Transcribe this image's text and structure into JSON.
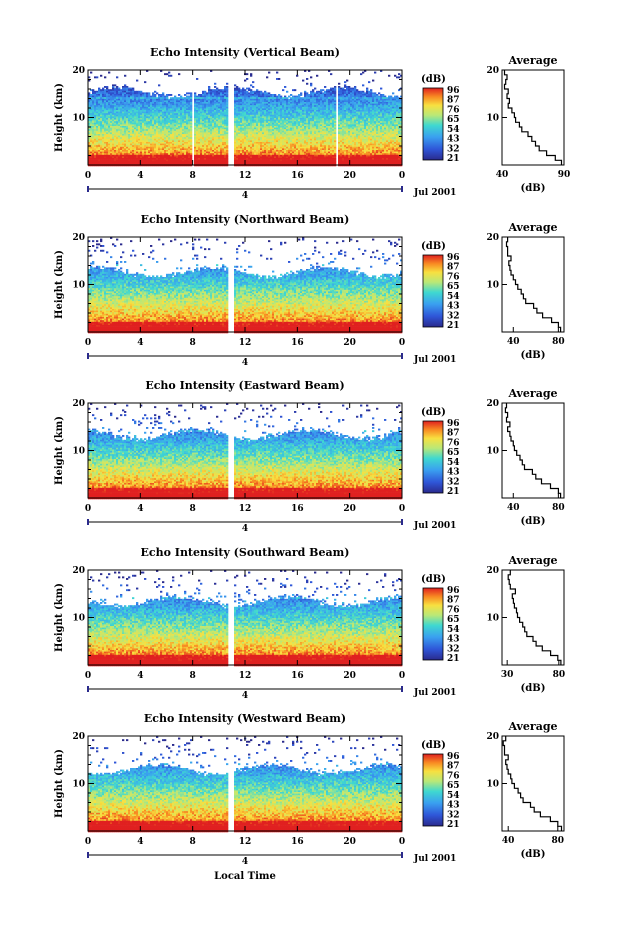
{
  "figure": {
    "xlabel_bottom": "Local Time",
    "date_label": "Jul 2001",
    "day_label": "4"
  },
  "chart_data": [
    {
      "type": "heatmap",
      "title": "Echo Intensity (Vertical Beam)",
      "ylabel": "Height (km)",
      "x_ticks": [
        "0",
        "4",
        "8",
        "12",
        "16",
        "20",
        "0"
      ],
      "y_ticks": [
        "10",
        "20"
      ],
      "ylim": [
        0,
        20
      ],
      "xlim": [
        0,
        24
      ],
      "colorbar": {
        "label": "(dB)",
        "ticks": [
          "96",
          "87",
          "76",
          "65",
          "54",
          "43",
          "32",
          "21"
        ],
        "range": [
          21,
          96
        ]
      },
      "data_gaps_hours": [
        [
          7.9,
          8.1
        ],
        [
          10.6,
          11.1
        ],
        [
          18.9,
          19.1
        ]
      ],
      "profile": {
        "title": "Average",
        "xlabel": "(dB)",
        "x_ticks": [
          "40",
          "90"
        ],
        "xlim": [
          40,
          90
        ],
        "y_ticks": [
          "10",
          "20"
        ],
        "heights": [
          1,
          2,
          3,
          4,
          5,
          6,
          7,
          8,
          9,
          10,
          11,
          12,
          13,
          14,
          15,
          16,
          17,
          18,
          19,
          20
        ],
        "values": [
          88,
          83,
          76,
          70,
          67,
          64,
          61,
          56,
          54,
          51,
          50,
          48,
          45,
          46,
          44,
          45,
          42,
          43,
          44,
          42
        ]
      }
    },
    {
      "type": "heatmap",
      "title": "Echo Intensity (Northward Beam)",
      "ylabel": "Height (km)",
      "x_ticks": [
        "0",
        "4",
        "8",
        "12",
        "16",
        "20",
        "0"
      ],
      "y_ticks": [
        "10",
        "20"
      ],
      "ylim": [
        0,
        20
      ],
      "xlim": [
        0,
        24
      ],
      "colorbar": {
        "label": "(dB)",
        "ticks": [
          "96",
          "87",
          "76",
          "65",
          "54",
          "43",
          "32",
          "21"
        ],
        "range": [
          21,
          96
        ]
      },
      "data_gaps_hours": [
        [
          10.6,
          11.1
        ]
      ],
      "profile": {
        "title": "Average",
        "xlabel": "(dB)",
        "x_ticks": [
          "40",
          "80"
        ],
        "xlim": [
          30,
          85
        ],
        "y_ticks": [
          "10",
          "20"
        ],
        "heights": [
          1,
          2,
          3,
          4,
          5,
          6,
          7,
          8,
          9,
          10,
          11,
          12,
          13,
          14,
          15,
          16,
          17,
          18,
          19,
          20
        ],
        "values": [
          82,
          80,
          74,
          66,
          61,
          58,
          51,
          49,
          47,
          44,
          42,
          40,
          38,
          37,
          36,
          38,
          35,
          35,
          34,
          35
        ]
      }
    },
    {
      "type": "heatmap",
      "title": "Echo Intensity (Eastward Beam)",
      "ylabel": "Height (km)",
      "x_ticks": [
        "0",
        "4",
        "8",
        "12",
        "16",
        "20",
        "0"
      ],
      "y_ticks": [
        "10",
        "20"
      ],
      "ylim": [
        0,
        20
      ],
      "xlim": [
        0,
        24
      ],
      "colorbar": {
        "label": "(dB)",
        "ticks": [
          "96",
          "87",
          "76",
          "65",
          "54",
          "43",
          "32",
          "21"
        ],
        "range": [
          21,
          96
        ]
      },
      "data_gaps_hours": [
        [
          10.6,
          11.1
        ]
      ],
      "profile": {
        "title": "Average",
        "xlabel": "(dB)",
        "x_ticks": [
          "40",
          "80"
        ],
        "xlim": [
          30,
          85
        ],
        "y_ticks": [
          "10",
          "20"
        ],
        "heights": [
          1,
          2,
          3,
          4,
          5,
          6,
          7,
          8,
          9,
          10,
          11,
          12,
          13,
          14,
          15,
          16,
          17,
          18,
          19,
          20
        ],
        "values": [
          82,
          80,
          73,
          65,
          60,
          57,
          50,
          48,
          46,
          43,
          41,
          40,
          38,
          37,
          35,
          37,
          34,
          35,
          33,
          34
        ]
      }
    },
    {
      "type": "heatmap",
      "title": "Echo Intensity (Southward Beam)",
      "ylabel": "Height (km)",
      "x_ticks": [
        "0",
        "4",
        "8",
        "12",
        "16",
        "20",
        "0"
      ],
      "y_ticks": [
        "10",
        "20"
      ],
      "ylim": [
        0,
        20
      ],
      "xlim": [
        0,
        24
      ],
      "colorbar": {
        "label": "(dB)",
        "ticks": [
          "96",
          "87",
          "76",
          "65",
          "54",
          "43",
          "32",
          "21"
        ],
        "range": [
          21,
          96
        ]
      },
      "data_gaps_hours": [
        [
          10.6,
          11.1
        ]
      ],
      "profile": {
        "title": "Average",
        "xlabel": "(dB)",
        "x_ticks": [
          "30",
          "80"
        ],
        "xlim": [
          25,
          85
        ],
        "y_ticks": [
          "10",
          "20"
        ],
        "heights": [
          1,
          2,
          3,
          4,
          5,
          6,
          7,
          8,
          9,
          10,
          11,
          12,
          13,
          14,
          15,
          16,
          17,
          18,
          19,
          20
        ],
        "values": [
          82,
          79,
          72,
          64,
          58,
          55,
          49,
          47,
          45,
          42,
          40,
          39,
          37,
          36,
          35,
          38,
          33,
          32,
          31,
          33
        ]
      }
    },
    {
      "type": "heatmap",
      "title": "Echo Intensity (Westward Beam)",
      "ylabel": "Height (km)",
      "x_ticks": [
        "0",
        "4",
        "8",
        "12",
        "16",
        "20",
        "0"
      ],
      "y_ticks": [
        "10",
        "20"
      ],
      "ylim": [
        0,
        20
      ],
      "xlim": [
        0,
        24
      ],
      "colorbar": {
        "label": "(dB)",
        "ticks": [
          "96",
          "87",
          "76",
          "65",
          "54",
          "43",
          "32",
          "21"
        ],
        "range": [
          21,
          96
        ]
      },
      "data_gaps_hours": [
        [
          10.6,
          11.1
        ]
      ],
      "profile": {
        "title": "Average",
        "xlabel": "(dB)",
        "x_ticks": [
          "40",
          "80"
        ],
        "xlim": [
          35,
          85
        ],
        "y_ticks": [
          "10",
          "20"
        ],
        "heights": [
          1,
          2,
          3,
          4,
          5,
          6,
          7,
          8,
          9,
          10,
          11,
          12,
          13,
          14,
          15,
          16,
          17,
          18,
          19,
          20
        ],
        "values": [
          83,
          80,
          74,
          66,
          61,
          58,
          52,
          50,
          48,
          45,
          43,
          42,
          40,
          39,
          38,
          40,
          37,
          37,
          36,
          38
        ]
      }
    }
  ]
}
